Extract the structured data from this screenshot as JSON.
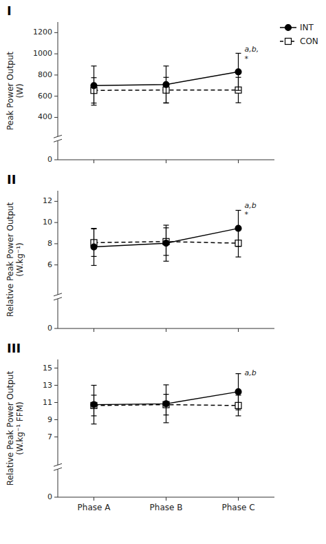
{
  "chart_data": [
    {
      "type": "line",
      "title": "I",
      "ylabel": "Peak Power Output\n(W)",
      "categories": [
        null,
        null,
        null
      ],
      "ylim": [
        0,
        1300
      ],
      "yticks": [
        0,
        400,
        600,
        800,
        1000,
        1200
      ],
      "grid": false,
      "legend": "upper right",
      "series": [
        {
          "name": "INT",
          "color": "#000000",
          "marker": "filled-circle",
          "line_style": "solid",
          "values": [
            700,
            710,
            830
          ],
          "errors": [
            185,
            175,
            175
          ]
        },
        {
          "name": "CON",
          "color": "#000000",
          "marker": "open-square",
          "line_style": "dashed",
          "values": [
            655,
            658,
            658
          ],
          "errors": [
            120,
            120,
            120
          ]
        }
      ],
      "annotations": [
        {
          "text": "a,b,\n*",
          "x": 2,
          "y": 1000
        }
      ]
    },
    {
      "type": "line",
      "title": "II",
      "ylabel": "Relative Peak Power Output\n(W.kg⁻¹)",
      "categories": [
        null,
        null,
        null
      ],
      "ylim": [
        0,
        13
      ],
      "yticks": [
        0,
        6,
        8,
        10,
        12
      ],
      "grid": false,
      "series": [
        {
          "color": "#000000",
          "marker": "filled-circle",
          "line_style": "solid",
          "values": [
            7.7,
            8.05,
            9.45
          ],
          "errors": [
            1.75,
            1.7,
            1.7
          ]
        },
        {
          "color": "#000000",
          "marker": "open-square",
          "line_style": "dashed",
          "values": [
            8.1,
            8.2,
            8.05
          ],
          "errors": [
            1.3,
            1.3,
            1.3
          ]
        }
      ],
      "annotations": [
        {
          "text": "a,b\n*",
          "x": 2,
          "y": 11.2
        }
      ]
    },
    {
      "type": "line",
      "title": "III",
      "ylabel": "Relative Peak Power Output\n(W.kg⁻¹ FFM)",
      "categories": [
        "Phase A",
        "Phase B",
        "Phase C"
      ],
      "ylim": [
        0,
        16
      ],
      "yticks": [
        0,
        7,
        9,
        11,
        13,
        15
      ],
      "grid": false,
      "series": [
        {
          "color": "#000000",
          "marker": "filled-circle",
          "line_style": "solid",
          "values": [
            10.75,
            10.85,
            12.25
          ],
          "errors": [
            2.25,
            2.2,
            2.1
          ]
        },
        {
          "color": "#000000",
          "marker": "open-square",
          "line_style": "dashed",
          "values": [
            10.65,
            10.75,
            10.65
          ],
          "errors": [
            1.2,
            1.2,
            1.2
          ]
        }
      ],
      "annotations": [
        {
          "text": "a,b",
          "x": 2,
          "y": 14.5
        }
      ]
    }
  ]
}
